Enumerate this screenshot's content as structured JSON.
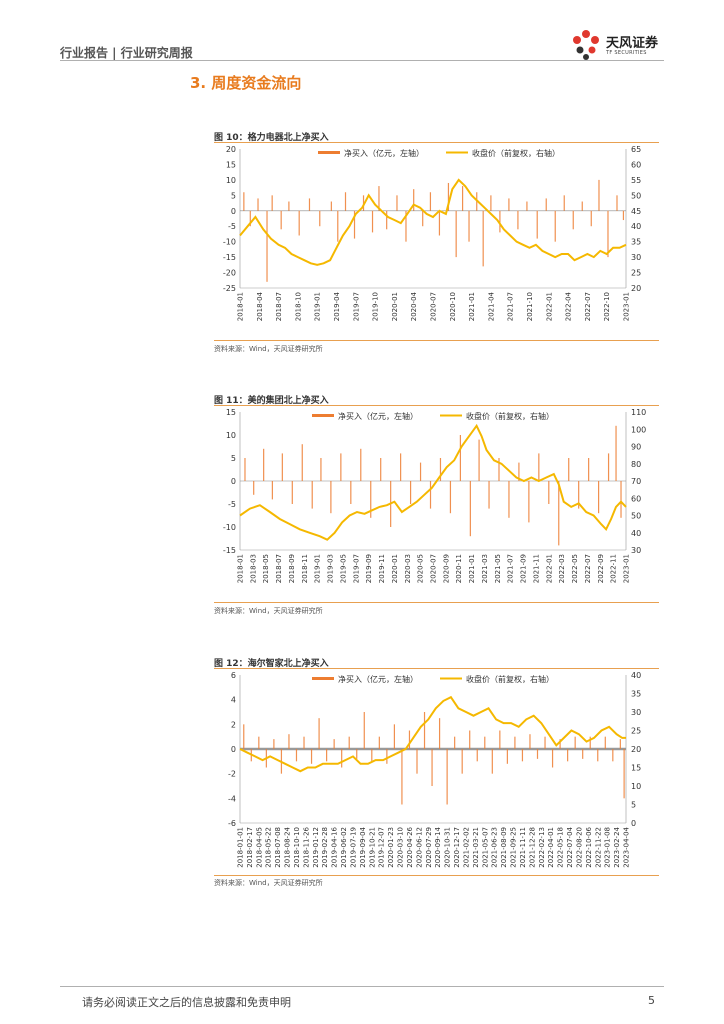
{
  "header": {
    "left": "行业报告 | 行业研究周报",
    "logo_cn": "天风证券",
    "logo_en": "TF SECURITIES"
  },
  "section_title": "3. 周度资金流向",
  "colors": {
    "bar": "#ed7d31",
    "line": "#f5b800",
    "accent": "#e87b1e"
  },
  "footer": {
    "text": "请务必阅读正文之后的信息披露和免责申明",
    "page": "5"
  },
  "figures": [
    {
      "title": "图 10：格力电器北上净买入",
      "source": "资料来源：Wind，天风证券研究所"
    },
    {
      "title": "图 11：美的集团北上净买入",
      "source": "资料来源：Wind，天风证券研究所"
    },
    {
      "title": "图 12：海尔智家北上净买入",
      "source": "资料来源：Wind，天风证券研究所"
    }
  ],
  "chart_data": [
    {
      "type": "bar+line",
      "legend": [
        "净买入（亿元，左轴）",
        "收盘价（前复权，右轴）"
      ],
      "y_left": [
        20,
        15,
        10,
        5,
        0,
        -5,
        -10,
        -15,
        -20,
        -25
      ],
      "y_right": [
        65,
        60,
        55,
        50,
        45,
        40,
        35,
        30,
        25,
        20
      ],
      "ylim_left": [
        -25,
        20
      ],
      "ylim_right": [
        20,
        65
      ],
      "x_ticks": [
        "2018-01",
        "2018-04",
        "2018-07",
        "2018-10",
        "2019-01",
        "2019-04",
        "2019-07",
        "2019-10",
        "2020-01",
        "2020-04",
        "2020-07",
        "2020-10",
        "2021-01",
        "2021-04",
        "2021-07",
        "2021-10",
        "2022-01",
        "2022-04",
        "2022-07",
        "2022-10",
        "2023-01"
      ],
      "price": [
        [
          0,
          37
        ],
        [
          0.6,
          40
        ],
        [
          1.2,
          43
        ],
        [
          1.8,
          39
        ],
        [
          2.4,
          36
        ],
        [
          3,
          34
        ],
        [
          3.5,
          33
        ],
        [
          4,
          31
        ],
        [
          4.5,
          30
        ],
        [
          5,
          29
        ],
        [
          5.5,
          28
        ],
        [
          6,
          27.5
        ],
        [
          6.5,
          28
        ],
        [
          7,
          29
        ],
        [
          7.5,
          33
        ],
        [
          8,
          37
        ],
        [
          8.5,
          40
        ],
        [
          9,
          44
        ],
        [
          9.5,
          46
        ],
        [
          10,
          50
        ],
        [
          10.5,
          47
        ],
        [
          11,
          45
        ],
        [
          11.5,
          43
        ],
        [
          12,
          42
        ],
        [
          12.5,
          41
        ],
        [
          13,
          44
        ],
        [
          13.5,
          47
        ],
        [
          14,
          46
        ],
        [
          14.5,
          44
        ],
        [
          15,
          43
        ],
        [
          15.5,
          45
        ],
        [
          16,
          44
        ],
        [
          16.5,
          52
        ],
        [
          17,
          55
        ],
        [
          17.5,
          53
        ],
        [
          18,
          50
        ],
        [
          18.5,
          48
        ],
        [
          19,
          46
        ],
        [
          19.5,
          44
        ],
        [
          20,
          42
        ],
        [
          20.5,
          39
        ],
        [
          21,
          37
        ],
        [
          21.5,
          35
        ],
        [
          22,
          34
        ],
        [
          22.5,
          33
        ],
        [
          23,
          34
        ],
        [
          23.5,
          32
        ],
        [
          24,
          31
        ],
        [
          24.5,
          30
        ],
        [
          25,
          31
        ],
        [
          25.5,
          31
        ],
        [
          26,
          29
        ],
        [
          26.5,
          30
        ],
        [
          27,
          31
        ],
        [
          27.5,
          30
        ],
        [
          28,
          32
        ],
        [
          28.5,
          31
        ],
        [
          29,
          33
        ],
        [
          29.5,
          33
        ],
        [
          30,
          34
        ]
      ],
      "net_buy": [
        [
          0.3,
          6
        ],
        [
          0.8,
          -5
        ],
        [
          1.4,
          4
        ],
        [
          2.1,
          -23
        ],
        [
          2.5,
          5
        ],
        [
          3.2,
          -6
        ],
        [
          3.8,
          3
        ],
        [
          4.6,
          -8
        ],
        [
          5.4,
          4
        ],
        [
          6.2,
          -5
        ],
        [
          7.1,
          3
        ],
        [
          7.6,
          -10
        ],
        [
          8.2,
          6
        ],
        [
          8.9,
          -9
        ],
        [
          9.6,
          5
        ],
        [
          10.3,
          -7
        ],
        [
          10.8,
          8
        ],
        [
          11.4,
          -6
        ],
        [
          12.2,
          5
        ],
        [
          12.9,
          -10
        ],
        [
          13.5,
          7
        ],
        [
          14.2,
          -5
        ],
        [
          14.8,
          6
        ],
        [
          15.5,
          -8
        ],
        [
          16.2,
          9
        ],
        [
          16.8,
          -15
        ],
        [
          17.3,
          8
        ],
        [
          17.8,
          -10
        ],
        [
          18.4,
          6
        ],
        [
          18.9,
          -18
        ],
        [
          19.5,
          5
        ],
        [
          20.2,
          -7
        ],
        [
          20.9,
          4
        ],
        [
          21.6,
          -6
        ],
        [
          22.3,
          3
        ],
        [
          23.1,
          -9
        ],
        [
          23.8,
          4
        ],
        [
          24.5,
          -10
        ],
        [
          25.2,
          5
        ],
        [
          25.9,
          -6
        ],
        [
          26.6,
          3
        ],
        [
          27.3,
          -5
        ],
        [
          27.9,
          10
        ],
        [
          28.6,
          -15
        ],
        [
          29.3,
          5
        ],
        [
          29.8,
          -3
        ]
      ]
    },
    {
      "type": "bar+line",
      "legend": [
        "净买入（亿元，左轴）",
        "收盘价（前复权，右轴）"
      ],
      "y_left": [
        15,
        10,
        5,
        0,
        -5,
        -10,
        -15
      ],
      "y_right": [
        110,
        100,
        90,
        80,
        70,
        60,
        50,
        40,
        30
      ],
      "ylim_left": [
        -15,
        15
      ],
      "ylim_right": [
        30,
        110
      ],
      "x_ticks": [
        "2018-01",
        "2018-03",
        "2018-05",
        "2018-07",
        "2018-09",
        "2018-11",
        "2019-01",
        "2019-03",
        "2019-05",
        "2019-07",
        "2019-09",
        "2019-11",
        "2020-01",
        "2020-03",
        "2020-05",
        "2020-07",
        "2020-09",
        "2020-11",
        "2021-01",
        "2021-03",
        "2021-05",
        "2021-07",
        "2021-09",
        "2021-11",
        "2022-01",
        "2022-03",
        "2022-05",
        "2022-07",
        "2022-09",
        "2022-11",
        "2023-01"
      ],
      "price": [
        [
          0,
          50
        ],
        [
          0.8,
          54
        ],
        [
          1.6,
          56
        ],
        [
          2.4,
          52
        ],
        [
          3.2,
          48
        ],
        [
          4,
          45
        ],
        [
          4.8,
          42
        ],
        [
          5.6,
          40
        ],
        [
          6.4,
          38
        ],
        [
          7,
          36
        ],
        [
          7.6,
          40
        ],
        [
          8.2,
          46
        ],
        [
          8.8,
          50
        ],
        [
          9.4,
          52
        ],
        [
          10,
          51
        ],
        [
          10.6,
          53
        ],
        [
          11.2,
          55
        ],
        [
          11.8,
          56
        ],
        [
          12.4,
          58
        ],
        [
          13,
          52
        ],
        [
          13.6,
          55
        ],
        [
          14.2,
          58
        ],
        [
          14.8,
          62
        ],
        [
          15.4,
          66
        ],
        [
          16,
          72
        ],
        [
          16.6,
          78
        ],
        [
          17.2,
          82
        ],
        [
          17.8,
          90
        ],
        [
          18.2,
          94
        ],
        [
          18.6,
          98
        ],
        [
          19,
          102
        ],
        [
          19.4,
          96
        ],
        [
          19.8,
          88
        ],
        [
          20.4,
          82
        ],
        [
          21,
          80
        ],
        [
          21.6,
          76
        ],
        [
          22.2,
          72
        ],
        [
          22.8,
          70
        ],
        [
          23.4,
          72
        ],
        [
          24,
          70
        ],
        [
          24.6,
          72
        ],
        [
          25.2,
          74
        ],
        [
          25.6,
          68
        ],
        [
          26,
          58
        ],
        [
          26.6,
          55
        ],
        [
          27.2,
          57
        ],
        [
          27.8,
          52
        ],
        [
          28.4,
          50
        ],
        [
          29,
          45
        ],
        [
          29.4,
          42
        ],
        [
          29.8,
          48
        ],
        [
          30.2,
          55
        ],
        [
          30.6,
          58
        ],
        [
          31,
          55
        ]
      ],
      "net_buy": [
        [
          0.4,
          5
        ],
        [
          1.1,
          -3
        ],
        [
          1.9,
          7
        ],
        [
          2.6,
          -4
        ],
        [
          3.4,
          6
        ],
        [
          4.2,
          -5
        ],
        [
          5,
          8
        ],
        [
          5.8,
          -6
        ],
        [
          6.5,
          5
        ],
        [
          7.3,
          -7
        ],
        [
          8.1,
          6
        ],
        [
          8.9,
          -5
        ],
        [
          9.7,
          7
        ],
        [
          10.5,
          -8
        ],
        [
          11.3,
          5
        ],
        [
          12.1,
          -10
        ],
        [
          12.9,
          6
        ],
        [
          13.7,
          -5
        ],
        [
          14.5,
          4
        ],
        [
          15.3,
          -6
        ],
        [
          16.1,
          5
        ],
        [
          16.9,
          -7
        ],
        [
          17.7,
          10
        ],
        [
          18.5,
          -12
        ],
        [
          19.2,
          9
        ],
        [
          20,
          -6
        ],
        [
          20.8,
          5
        ],
        [
          21.6,
          -8
        ],
        [
          22.4,
          4
        ],
        [
          23.2,
          -9
        ],
        [
          24,
          6
        ],
        [
          24.8,
          -5
        ],
        [
          25.6,
          -14
        ],
        [
          26.4,
          5
        ],
        [
          27.2,
          -6
        ],
        [
          28,
          5
        ],
        [
          28.8,
          -7
        ],
        [
          29.6,
          6
        ],
        [
          30.2,
          12
        ],
        [
          30.6,
          -8
        ]
      ]
    },
    {
      "type": "bar+line",
      "legend": [
        "净买入（亿元，左轴）",
        "收盘价（前复权，右轴）"
      ],
      "y_left": [
        6,
        4,
        2,
        0,
        -2,
        -4,
        -6
      ],
      "y_right": [
        40,
        35,
        30,
        25,
        20,
        15,
        10,
        5,
        0
      ],
      "ylim_left": [
        -6,
        6
      ],
      "ylim_right": [
        0,
        40
      ],
      "x_ticks": [
        "2018-01-01",
        "2018-02-17",
        "2018-04-05",
        "2018-05-22",
        "2018-07-08",
        "2018-08-24",
        "2018-10-10",
        "2018-11-26",
        "2019-01-12",
        "2019-02-28",
        "2019-04-16",
        "2019-06-02",
        "2019-07-19",
        "2019-09-04",
        "2019-10-21",
        "2019-12-07",
        "2020-01-23",
        "2020-03-10",
        "2020-04-26",
        "2020-06-12",
        "2020-07-29",
        "2020-09-14",
        "2020-10-31",
        "2020-12-17",
        "2021-02-02",
        "2021-03-21",
        "2021-05-07",
        "2021-06-23",
        "2021-08-09",
        "2021-09-25",
        "2021-11-11",
        "2021-12-28",
        "2022-02-13",
        "2022-04-01",
        "2022-05-18",
        "2022-07-04",
        "2022-08-20",
        "2022-10-06",
        "2022-11-22",
        "2023-01-08",
        "2023-02-24",
        "2023-04-04"
      ],
      "price": [
        [
          0,
          20
        ],
        [
          0.8,
          19
        ],
        [
          1.6,
          18
        ],
        [
          2.4,
          17
        ],
        [
          3.2,
          18
        ],
        [
          4,
          17
        ],
        [
          4.8,
          16
        ],
        [
          5.6,
          15
        ],
        [
          6.4,
          14
        ],
        [
          7.2,
          15
        ],
        [
          8,
          15
        ],
        [
          8.8,
          16
        ],
        [
          9.6,
          16
        ],
        [
          10.4,
          16
        ],
        [
          11.2,
          17
        ],
        [
          12,
          18
        ],
        [
          12.8,
          16
        ],
        [
          13.6,
          16
        ],
        [
          14.4,
          17
        ],
        [
          15.2,
          17
        ],
        [
          16,
          18
        ],
        [
          16.8,
          19
        ],
        [
          17.6,
          20
        ],
        [
          18.4,
          23
        ],
        [
          19.2,
          26
        ],
        [
          20,
          28
        ],
        [
          20.8,
          31
        ],
        [
          21.6,
          33
        ],
        [
          22.4,
          34
        ],
        [
          23.2,
          31
        ],
        [
          24,
          30
        ],
        [
          24.8,
          29
        ],
        [
          25.6,
          30
        ],
        [
          26.4,
          31
        ],
        [
          27.2,
          28
        ],
        [
          28,
          27
        ],
        [
          28.8,
          27
        ],
        [
          29.6,
          26
        ],
        [
          30.4,
          28
        ],
        [
          31.2,
          29
        ],
        [
          32,
          27
        ],
        [
          32.8,
          24
        ],
        [
          33.6,
          21
        ],
        [
          34.4,
          23
        ],
        [
          35.2,
          25
        ],
        [
          36,
          24
        ],
        [
          36.8,
          22
        ],
        [
          37.6,
          23
        ],
        [
          38.4,
          25
        ],
        [
          39.2,
          26
        ],
        [
          40,
          24
        ],
        [
          40.6,
          23
        ],
        [
          41,
          23
        ]
      ],
      "net_buy": [
        [
          0.4,
          2
        ],
        [
          1.2,
          -1
        ],
        [
          2,
          1
        ],
        [
          2.8,
          -1.5
        ],
        [
          3.6,
          0.8
        ],
        [
          4.4,
          -2
        ],
        [
          5.2,
          1.2
        ],
        [
          6,
          -1
        ],
        [
          6.8,
          1
        ],
        [
          7.6,
          -1.2
        ],
        [
          8.4,
          2.5
        ],
        [
          9.2,
          -1
        ],
        [
          10,
          0.8
        ],
        [
          10.8,
          -1.5
        ],
        [
          11.6,
          1
        ],
        [
          12.4,
          -0.8
        ],
        [
          13.2,
          3
        ],
        [
          14,
          -1
        ],
        [
          14.8,
          1
        ],
        [
          15.6,
          -1.2
        ],
        [
          16.4,
          2
        ],
        [
          17.2,
          -4.5
        ],
        [
          18,
          1.5
        ],
        [
          18.8,
          -2
        ],
        [
          19.6,
          3
        ],
        [
          20.4,
          -3
        ],
        [
          21.2,
          2.5
        ],
        [
          22,
          -4.5
        ],
        [
          22.8,
          1
        ],
        [
          23.6,
          -2
        ],
        [
          24.4,
          1.5
        ],
        [
          25.2,
          -1
        ],
        [
          26,
          1
        ],
        [
          26.8,
          -2
        ],
        [
          27.6,
          1.5
        ],
        [
          28.4,
          -1.2
        ],
        [
          29.2,
          1
        ],
        [
          30,
          -1
        ],
        [
          30.8,
          1.2
        ],
        [
          31.6,
          -0.8
        ],
        [
          32.4,
          1
        ],
        [
          33.2,
          -1.5
        ],
        [
          34,
          0.8
        ],
        [
          34.8,
          -1
        ],
        [
          35.6,
          1
        ],
        [
          36.4,
          -0.8
        ],
        [
          37.2,
          1
        ],
        [
          38,
          -1
        ],
        [
          38.8,
          1
        ],
        [
          39.6,
          -1
        ],
        [
          40.4,
          0.8
        ],
        [
          40.8,
          -4
        ]
      ]
    }
  ]
}
